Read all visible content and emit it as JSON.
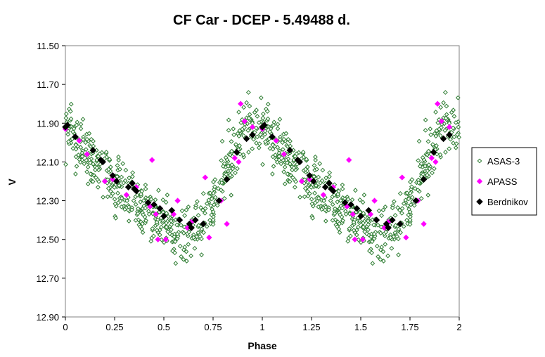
{
  "chart_data": {
    "type": "scatter",
    "title": "CF Car - DCEP - 5.49488 d.",
    "xlabel": "Phase",
    "ylabel": "V",
    "xlim": [
      0,
      2
    ],
    "ylim": [
      11.5,
      12.9
    ],
    "y_reversed": true,
    "x_ticks": [
      "0",
      "0.25",
      "0.5",
      "0.75",
      "1",
      "1.25",
      "1.5",
      "1.75",
      "2"
    ],
    "x_tick_values": [
      0,
      0.25,
      0.5,
      0.75,
      1,
      1.25,
      1.5,
      1.75,
      2
    ],
    "y_ticks": [
      "11.50",
      "11.70",
      "11.90",
      "12.10",
      "12.30",
      "12.50",
      "12.70",
      "12.90"
    ],
    "y_tick_values": [
      11.5,
      11.7,
      11.9,
      12.1,
      12.3,
      12.5,
      12.7,
      12.9
    ],
    "grid": false,
    "legend_position": "right",
    "series": [
      {
        "name": "ASAS-3",
        "marker": "diamond-open",
        "color": "#2e7d32",
        "scatter_sd": 0.075,
        "phase_range": [
          0,
          1
        ],
        "x": [
          0.0,
          0.02,
          0.04,
          0.06,
          0.08,
          0.1,
          0.12,
          0.14,
          0.16,
          0.18,
          0.2,
          0.22,
          0.24,
          0.26,
          0.28,
          0.3,
          0.32,
          0.34,
          0.36,
          0.38,
          0.4,
          0.42,
          0.44,
          0.46,
          0.48,
          0.5,
          0.52,
          0.54,
          0.56,
          0.58,
          0.6,
          0.62,
          0.64,
          0.66,
          0.68,
          0.7,
          0.72,
          0.74,
          0.76,
          0.78,
          0.8,
          0.82,
          0.84,
          0.86,
          0.88,
          0.9,
          0.92,
          0.94,
          0.96,
          0.98,
          1.0
        ],
        "y": [
          11.93,
          11.95,
          11.98,
          12.01,
          12.04,
          12.06,
          12.08,
          12.1,
          12.12,
          12.14,
          12.16,
          12.18,
          12.19,
          12.21,
          12.23,
          12.25,
          12.27,
          12.29,
          12.31,
          12.33,
          12.35,
          12.37,
          12.38,
          12.4,
          12.41,
          12.42,
          12.43,
          12.44,
          12.45,
          12.45,
          12.46,
          12.46,
          12.46,
          12.45,
          12.44,
          12.42,
          12.39,
          12.35,
          12.3,
          12.24,
          12.18,
          12.12,
          12.07,
          12.03,
          11.99,
          11.96,
          11.94,
          11.93,
          11.93,
          11.93,
          11.93
        ]
      },
      {
        "name": "APASS",
        "marker": "diamond-filled",
        "color": "#ff00ff",
        "x": [
          0.0,
          0.07,
          0.11,
          0.2,
          0.24,
          0.31,
          0.36,
          0.43,
          0.44,
          0.46,
          0.47,
          0.5,
          0.51,
          0.55,
          0.57,
          0.62,
          0.64,
          0.7,
          0.71,
          0.73,
          0.79,
          0.82,
          0.86,
          0.88,
          0.89,
          0.91,
          0.95,
          1.0,
          1.07,
          1.11,
          1.2,
          1.24,
          1.31,
          1.36,
          1.43,
          1.44,
          1.46,
          1.47,
          1.5,
          1.51,
          1.55,
          1.57,
          1.62,
          1.64,
          1.7,
          1.71,
          1.73,
          1.79,
          1.82,
          1.86,
          1.88,
          1.89,
          1.91,
          1.95
        ],
        "y": [
          11.93,
          11.99,
          12.06,
          12.2,
          12.19,
          12.27,
          12.23,
          12.33,
          12.09,
          12.37,
          12.5,
          12.38,
          12.5,
          12.37,
          12.3,
          12.44,
          12.41,
          12.42,
          12.18,
          12.49,
          12.3,
          12.42,
          12.08,
          12.1,
          11.8,
          11.89,
          11.92,
          11.93,
          11.99,
          12.06,
          12.2,
          12.19,
          12.27,
          12.23,
          12.33,
          12.09,
          12.37,
          12.5,
          12.38,
          12.5,
          12.37,
          12.3,
          12.44,
          12.41,
          12.42,
          12.18,
          12.49,
          12.3,
          12.42,
          12.08,
          12.1,
          11.8,
          11.89,
          11.92
        ]
      },
      {
        "name": "Berdnikov",
        "marker": "diamond-filled",
        "color": "#000000",
        "x": [
          0.0,
          0.01,
          0.05,
          0.14,
          0.18,
          0.19,
          0.24,
          0.26,
          0.32,
          0.34,
          0.35,
          0.36,
          0.42,
          0.45,
          0.48,
          0.5,
          0.54,
          0.58,
          0.63,
          0.64,
          0.66,
          0.7,
          0.78,
          0.82,
          0.87,
          0.92,
          0.95,
          1.0,
          1.01,
          1.05,
          1.14,
          1.18,
          1.19,
          1.24,
          1.26,
          1.32,
          1.34,
          1.35,
          1.36,
          1.42,
          1.45,
          1.48,
          1.5,
          1.54,
          1.58,
          1.63,
          1.64,
          1.66,
          1.7,
          1.78,
          1.82,
          1.87,
          1.92,
          1.95
        ],
        "y": [
          11.92,
          11.91,
          11.97,
          12.04,
          12.09,
          12.1,
          12.17,
          12.2,
          12.23,
          12.21,
          12.24,
          12.25,
          12.31,
          12.32,
          12.34,
          12.38,
          12.35,
          12.4,
          12.42,
          12.44,
          12.4,
          12.42,
          12.3,
          12.19,
          12.05,
          11.98,
          11.96,
          11.92,
          11.91,
          11.97,
          12.04,
          12.09,
          12.1,
          12.17,
          12.2,
          12.23,
          12.21,
          12.24,
          12.25,
          12.31,
          12.32,
          12.34,
          12.38,
          12.35,
          12.4,
          12.42,
          12.44,
          12.4,
          12.42,
          12.3,
          12.19,
          12.05,
          11.98,
          11.96
        ]
      }
    ]
  }
}
